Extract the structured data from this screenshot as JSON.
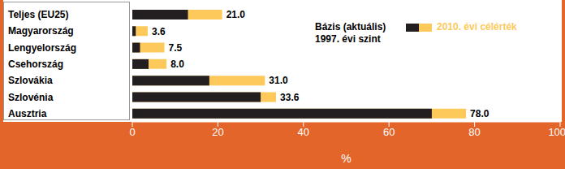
{
  "chart_data": {
    "type": "bar",
    "orientation": "horizontal",
    "x_label": "%",
    "categories": [
      "Teljes (EU25)",
      "Magyarország",
      "Lengyelország",
      "Csehország",
      "Szlovákia",
      "Szlovénia",
      "Ausztria"
    ],
    "series": [
      {
        "name": "Bázis (aktuális) 1997. évi szint",
        "color": "#231f20",
        "values": [
          13,
          0.8,
          1.8,
          3.8,
          18,
          30,
          70
        ]
      },
      {
        "name": "2010. évi célérték",
        "color": "#fdc95a",
        "values": [
          21,
          3.6,
          7.5,
          8,
          31,
          33.6,
          78
        ],
        "value_labels": [
          "21.0",
          "3.6",
          "7.5",
          "8.0",
          "31.0",
          "33.6",
          "78.0"
        ]
      }
    ],
    "xlim": [
      0,
      100
    ],
    "xticks": [
      0,
      20,
      40,
      60,
      80,
      100
    ],
    "data_labels": true,
    "grid": false
  }
}
